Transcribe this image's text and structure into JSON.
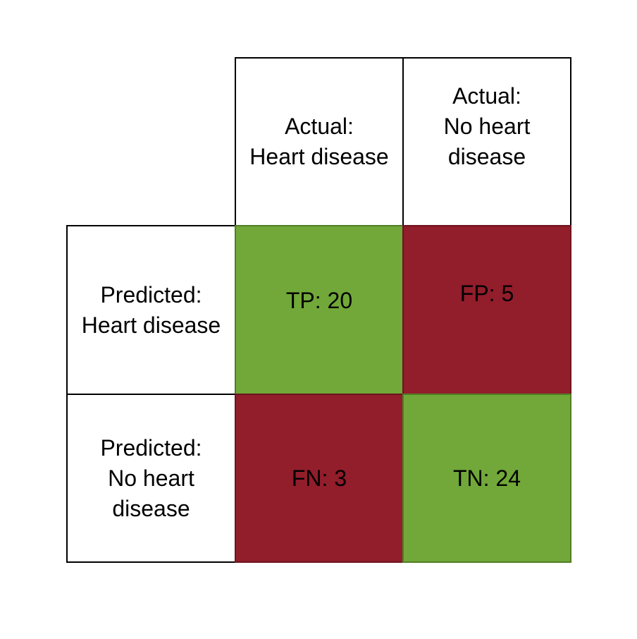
{
  "matrix": {
    "col_headers": [
      "Actual:\nHeart disease",
      "Actual:\nNo heart\ndisease"
    ],
    "row_headers": [
      "Predicted:\nHeart disease",
      "Predicted:\nNo heart\ndisease"
    ],
    "cells": {
      "tp": "TP: 20",
      "fp": "FP: 5",
      "fn": "FN: 3",
      "tn": "TN: 24"
    },
    "colors": {
      "correct": "#71a839",
      "incorrect": "#921d2b",
      "border": "#000000"
    }
  }
}
